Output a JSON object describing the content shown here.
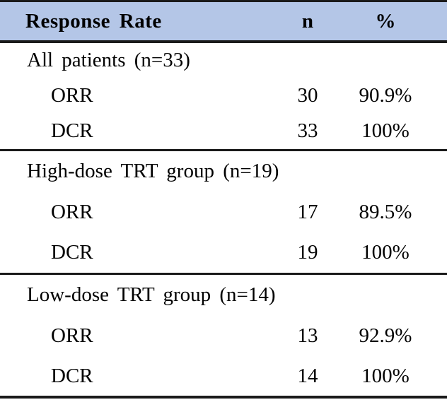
{
  "table": {
    "header": {
      "label": "Response Rate",
      "n": "n",
      "pct": "%"
    },
    "sections": [
      {
        "title": "All patients (n=33)",
        "rows": [
          {
            "label": "ORR",
            "n": "30",
            "pct": "90.9%"
          },
          {
            "label": "DCR",
            "n": "33",
            "pct": "100%"
          }
        ]
      },
      {
        "title": "High-dose TRT group (n=19)",
        "rows": [
          {
            "label": "ORR",
            "n": "17",
            "pct": "89.5%"
          },
          {
            "label": "DCR",
            "n": "19",
            "pct": "100%"
          }
        ]
      },
      {
        "title": "Low-dose TRT group (n=14)",
        "rows": [
          {
            "label": "ORR",
            "n": "13",
            "pct": "92.9%"
          },
          {
            "label": "DCR",
            "n": "14",
            "pct": "100%"
          }
        ]
      }
    ],
    "colors": {
      "header_bg": "#b4c6e7",
      "border": "#1a1a1a",
      "text": "#000000"
    }
  }
}
